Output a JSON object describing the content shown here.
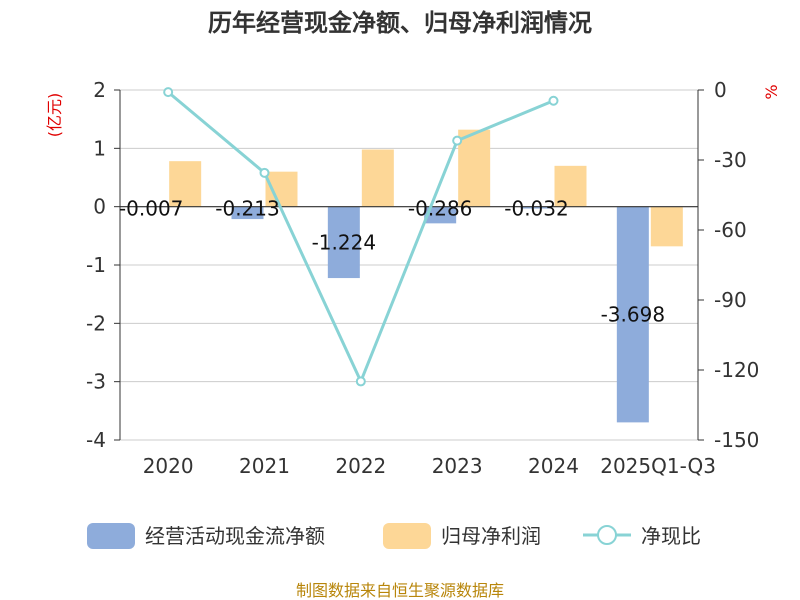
{
  "chart_data": {
    "type": "bar",
    "title": "历年经营现金净额、归母净利润情况",
    "categories": [
      "2020",
      "2021",
      "2022",
      "2023",
      "2024",
      "2025Q1-Q3"
    ],
    "series": [
      {
        "name": "经营活动现金流净额",
        "type": "bar",
        "axis": "left",
        "color": "#8eacdb",
        "values": [
          -0.007,
          -0.213,
          -1.224,
          -0.286,
          -0.032,
          -3.698
        ],
        "labels": [
          "-0.007",
          "-0.213",
          "-1.224",
          "-0.286",
          "-0.032",
          "-3.698"
        ]
      },
      {
        "name": "归母净利润",
        "type": "bar",
        "axis": "left",
        "color": "#fdd797",
        "values": [
          0.78,
          0.6,
          0.98,
          1.32,
          0.7,
          -0.68
        ]
      },
      {
        "name": "净现比",
        "type": "line",
        "axis": "right",
        "color": "#88d3d5",
        "values": [
          -0.9,
          -35.5,
          -124.9,
          -21.7,
          -4.6,
          null
        ]
      }
    ],
    "y_left": {
      "label": "(亿元)",
      "min": -4,
      "max": 2,
      "ticks": [
        "2",
        "1",
        "0",
        "-1",
        "-2",
        "-3",
        "-4"
      ]
    },
    "y_right": {
      "label": "%",
      "min": -150,
      "max": 0,
      "ticks": [
        "0",
        "-30",
        "-60",
        "-90",
        "-120",
        "-150"
      ]
    },
    "legend_position": "bottom",
    "grid": true
  },
  "source": "制图数据来自恒生聚源数据库"
}
